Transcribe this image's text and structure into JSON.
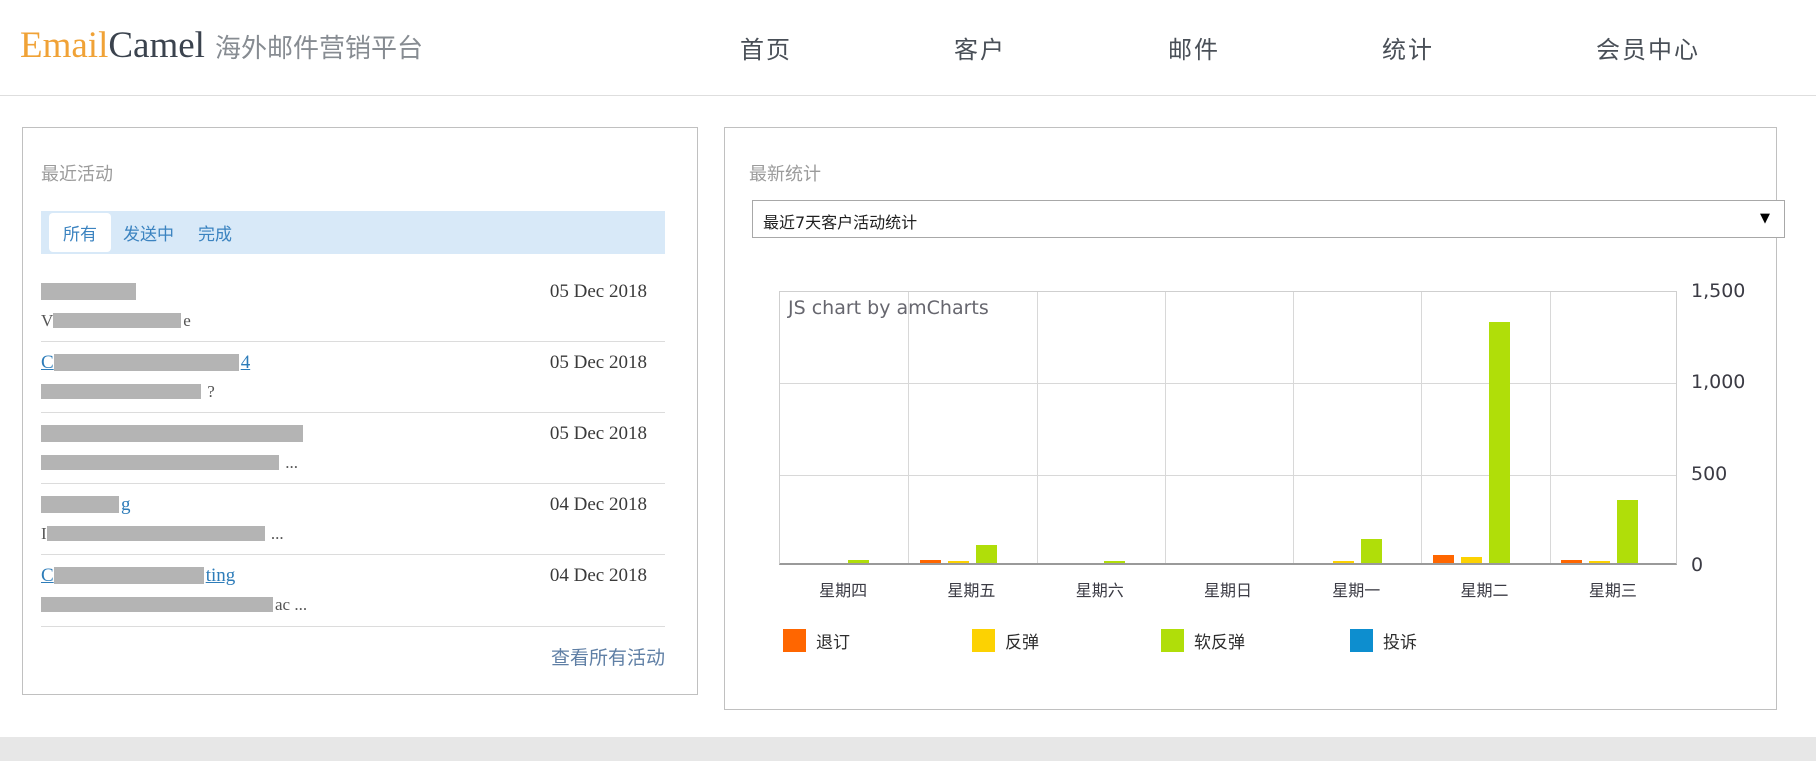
{
  "header": {
    "logo": {
      "part1": "Email",
      "part2": "Camel",
      "tagline": "海外邮件营销平台"
    },
    "nav": [
      "首页",
      "客户",
      "邮件",
      "统计",
      "会员中心"
    ]
  },
  "activity_panel": {
    "title": "最近活动",
    "tabs": [
      {
        "label": "所有",
        "active": true
      },
      {
        "label": "发送中",
        "active": false
      },
      {
        "label": "完成",
        "active": false
      }
    ],
    "items": [
      {
        "title_prefix": "",
        "title_bar": 95,
        "title_suffix": "",
        "sub_prefix": "V",
        "sub_bar": 128,
        "sub_suffix": "e",
        "date": "05 Dec 2018"
      },
      {
        "title_prefix": "C",
        "title_bar": 185,
        "title_suffix": "4",
        "sub_prefix": "",
        "sub_bar": 160,
        "sub_suffix": " ?",
        "date": "05 Dec 2018"
      },
      {
        "title_prefix": "",
        "title_bar": 262,
        "title_suffix": "",
        "sub_prefix": "",
        "sub_bar": 238,
        "sub_suffix": " ...",
        "date": "05 Dec 2018"
      },
      {
        "title_prefix": "",
        "title_bar": 78,
        "title_suffix": "g",
        "sub_prefix": "I",
        "sub_bar": 218,
        "sub_suffix": " ...",
        "date": "04 Dec 2018"
      },
      {
        "title_prefix": "C",
        "title_bar": 150,
        "title_suffix": "ting",
        "sub_prefix": "",
        "sub_bar": 232,
        "sub_suffix": "ac ...",
        "date": "04 Dec 2018"
      }
    ],
    "view_all": "查看所有活动"
  },
  "stats_panel": {
    "title": "最新统计",
    "selector": {
      "value": "最近7天客户活动统计",
      "arrow": "▼"
    },
    "watermark": "JS chart by amCharts"
  },
  "chart_data": {
    "type": "bar",
    "categories": [
      "星期四",
      "星期五",
      "星期六",
      "星期日",
      "星期一",
      "星期二",
      "星期三"
    ],
    "series": [
      {
        "name": "退订",
        "color": "#FF6600",
        "values": [
          0,
          15,
          0,
          0,
          0,
          45,
          15
        ]
      },
      {
        "name": "反弹",
        "color": "#FCD202",
        "values": [
          0,
          10,
          0,
          0,
          10,
          35,
          10
        ]
      },
      {
        "name": "软反弹",
        "color": "#B0DE09",
        "values": [
          15,
          100,
          10,
          0,
          130,
          1320,
          345
        ]
      },
      {
        "name": "投诉",
        "color": "#0D8ECF",
        "values": [
          0,
          0,
          0,
          0,
          0,
          0,
          0
        ]
      }
    ],
    "ylim": [
      0,
      1500
    ],
    "yticks": [
      "1,500",
      "1,000",
      "500",
      "0"
    ],
    "grid": true,
    "legend_position": "bottom",
    "xlabel": "",
    "ylabel": ""
  }
}
